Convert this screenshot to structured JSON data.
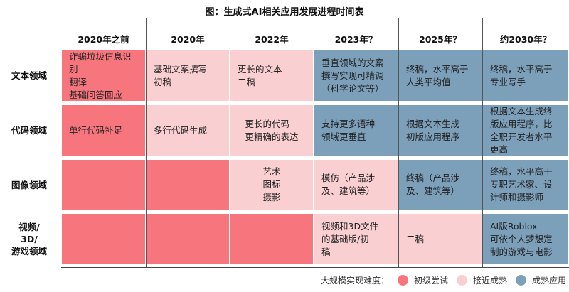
{
  "title": "图：生成式AI相关应用发展进程时间表",
  "colors": {
    "initial": "#f7767d",
    "near": "#f9cfd2",
    "mature": "#7c9fba"
  },
  "chart_data": {
    "type": "table",
    "columns": [
      "2020年之前",
      "2020年",
      "2022年",
      "2023年？",
      "2025年？",
      "约2030年？"
    ],
    "rows": [
      {
        "label": "文本领域",
        "cells": [
          {
            "text": "诈骗垃圾信息识别\n翻译\n基础问答回应",
            "level": "initial"
          },
          {
            "text": "基础文案撰写\n初稿",
            "level": "near"
          },
          {
            "text": "更长的文本\n二稿",
            "level": "near"
          },
          {
            "text": "垂直领域的文案\n撰写实现可精调\n（科学论文等）",
            "level": "mature"
          },
          {
            "text": "终稿，水平高于\n人类平均值",
            "level": "mature"
          },
          {
            "text": "终稿，水平高于\n专业写手",
            "level": "mature"
          }
        ]
      },
      {
        "label": "代码领域",
        "cells": [
          {
            "text": "单行代码补足",
            "level": "initial"
          },
          {
            "text": "多行代码生成",
            "level": "near"
          },
          {
            "text": "更长的代码\n更精确的表达",
            "level": "near"
          },
          {
            "text": "支持更多语种\n领域更垂直",
            "level": "mature"
          },
          {
            "text": "根据文本生成\n初版应用程序",
            "level": "mature"
          },
          {
            "text": "根据文本生成终\n版应用程序，比\n全职开发者水平\n更高",
            "level": "mature"
          }
        ]
      },
      {
        "label": "图像领域",
        "cells": [
          {
            "text": "",
            "level": "initial"
          },
          {
            "text": "",
            "level": "initial"
          },
          {
            "text": "艺术\n图标\n摄影",
            "level": "near"
          },
          {
            "text": "模仿（产品涉\n及、建筑等）",
            "level": "near"
          },
          {
            "text": "终稿（产品涉\n及、建筑等）",
            "level": "mature"
          },
          {
            "text": "终稿，水平高于\n专职艺术家、设\n计师和摄影师",
            "level": "mature"
          }
        ]
      },
      {
        "label": "视频/\n3D/\n游戏领域",
        "cells": [
          {
            "text": "",
            "level": "initial"
          },
          {
            "text": "",
            "level": "initial"
          },
          {
            "text": "",
            "level": "initial"
          },
          {
            "text": "视频和3D文件\n的基础版/初\n稿",
            "level": "near"
          },
          {
            "text": "二稿",
            "level": "near"
          },
          {
            "text": "AI版Roblox\n可依个人梦想定\n制的游戏与电影",
            "level": "mature"
          }
        ]
      }
    ],
    "legend": {
      "title": "大规模实现难度：",
      "items": [
        {
          "key": "initial",
          "label": "初级尝试"
        },
        {
          "key": "near",
          "label": "接近成熟"
        },
        {
          "key": "mature",
          "label": "成熟应用"
        }
      ]
    }
  }
}
